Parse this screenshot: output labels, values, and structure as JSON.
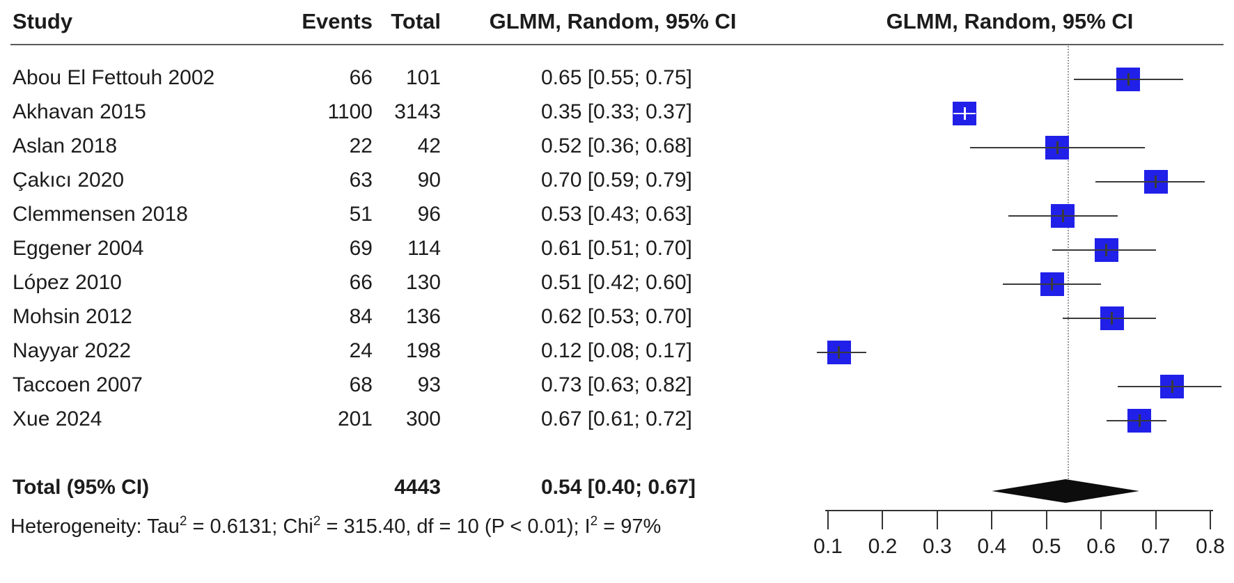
{
  "columns": {
    "study": "Study",
    "events": "Events",
    "total": "Total",
    "effect_ci": "GLMM, Random, 95% CI",
    "plot": "GLMM, Random, 95% CI"
  },
  "colors": {
    "square_blue": "#2020e8",
    "whisker_gray": "#3a3a3a",
    "marker_inside_white": "#ffffff",
    "diamond_black": "#0d0d0d",
    "ref_line_gray": "#9a9a9a",
    "axis_black": "#333333",
    "text_black": "#1c1c1c"
  },
  "chart_data": {
    "type": "forest",
    "studies": [
      {
        "name": "Abou El Fettouh 2002",
        "events": "66",
        "total": "101",
        "estimate": 0.65,
        "ci_lower": 0.55,
        "ci_upper": 0.75,
        "display": "0.65 [0.55; 0.75]",
        "ci_within_square": false
      },
      {
        "name": "Akhavan 2015",
        "events": "1100",
        "total": "3143",
        "estimate": 0.35,
        "ci_lower": 0.33,
        "ci_upper": 0.37,
        "display": "0.35 [0.33; 0.37]",
        "ci_within_square": true
      },
      {
        "name": "Aslan 2018",
        "events": "22",
        "total": "42",
        "estimate": 0.52,
        "ci_lower": 0.36,
        "ci_upper": 0.68,
        "display": "0.52 [0.36; 0.68]",
        "ci_within_square": false
      },
      {
        "name": "Çakıcı 2020",
        "events": "63",
        "total": "90",
        "estimate": 0.7,
        "ci_lower": 0.59,
        "ci_upper": 0.79,
        "display": "0.70 [0.59; 0.79]",
        "ci_within_square": false
      },
      {
        "name": "Clemmensen 2018",
        "events": "51",
        "total": "96",
        "estimate": 0.53,
        "ci_lower": 0.43,
        "ci_upper": 0.63,
        "display": "0.53 [0.43; 0.63]",
        "ci_within_square": false
      },
      {
        "name": "Eggener 2004",
        "events": "69",
        "total": "114",
        "estimate": 0.61,
        "ci_lower": 0.51,
        "ci_upper": 0.7,
        "display": "0.61 [0.51; 0.70]",
        "ci_within_square": false
      },
      {
        "name": "López 2010",
        "events": "66",
        "total": "130",
        "estimate": 0.51,
        "ci_lower": 0.42,
        "ci_upper": 0.6,
        "display": "0.51 [0.42; 0.60]",
        "ci_within_square": false
      },
      {
        "name": "Mohsin 2012",
        "events": "84",
        "total": "136",
        "estimate": 0.62,
        "ci_lower": 0.53,
        "ci_upper": 0.7,
        "display": "0.62 [0.53; 0.70]",
        "ci_within_square": false
      },
      {
        "name": "Nayyar 2022",
        "events": "24",
        "total": "198",
        "estimate": 0.12,
        "ci_lower": 0.08,
        "ci_upper": 0.17,
        "display": "0.12 [0.08; 0.17]",
        "ci_within_square": false
      },
      {
        "name": "Taccoen 2007",
        "events": "68",
        "total": "93",
        "estimate": 0.73,
        "ci_lower": 0.63,
        "ci_upper": 0.82,
        "display": "0.73 [0.63; 0.82]",
        "ci_within_square": false
      },
      {
        "name": "Xue 2024",
        "events": "201",
        "total": "300",
        "estimate": 0.67,
        "ci_lower": 0.61,
        "ci_upper": 0.72,
        "display": "0.67 [0.61; 0.72]",
        "ci_within_square": false
      }
    ],
    "overall": {
      "label": "Total (95% CI)",
      "total": "4443",
      "estimate": 0.54,
      "ci_lower": 0.4,
      "ci_upper": 0.67,
      "display": "0.54 [0.40; 0.67]"
    },
    "heterogeneity_segments": [
      {
        "text": "Heterogeneity: Tau"
      },
      {
        "sup": "2"
      },
      {
        "text": " = 0.6131; Chi"
      },
      {
        "sup": "2"
      },
      {
        "text": " = 315.40, df = 10 (P < 0.01); I"
      },
      {
        "sup": "2"
      },
      {
        "text": " = 97%"
      }
    ],
    "axis": {
      "min": 0.1,
      "max": 0.8,
      "ticks": [
        0.1,
        0.2,
        0.3,
        0.4,
        0.5,
        0.6,
        0.7,
        0.8
      ],
      "tick_labels": [
        "0.1",
        "0.2",
        "0.3",
        "0.4",
        "0.5",
        "0.6",
        "0.7",
        "0.8"
      ],
      "grid": false
    },
    "ref_line_value": 0.54,
    "legend_position": "none"
  }
}
